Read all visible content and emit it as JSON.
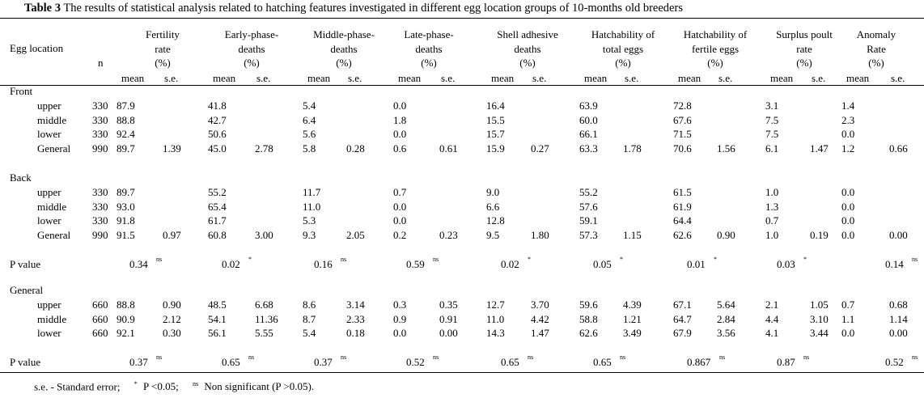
{
  "caption": {
    "label": "Table 3",
    "text": " The results of statistical analysis related to hatching features investigated in different egg location groups of 10-months old breeders"
  },
  "header": {
    "egg_location": "Egg location",
    "n": "n",
    "columns": [
      {
        "line1": "Fertility",
        "line2": "rate",
        "line3": "(%)"
      },
      {
        "line1": "Early-phase-",
        "line2": "deaths",
        "line3": "(%)"
      },
      {
        "line1": "Middle-phase-",
        "line2": "deaths",
        "line3": "(%)"
      },
      {
        "line1": "Late-phase-",
        "line2": "deaths",
        "line3": "(%)"
      },
      {
        "line1": "Shell adhesive",
        "line2": "deaths",
        "line3": "(%)"
      },
      {
        "line1": "Hatchability of",
        "line2": "total eggs",
        "line3": "(%)"
      },
      {
        "line1": "Hatchability of",
        "line2": "fertile eggs",
        "line3": "(%)"
      },
      {
        "line1": "Surplus poult",
        "line2": "rate",
        "line3": "(%)"
      },
      {
        "line1": "Anomaly",
        "line2": "Rate",
        "line3": "(%)"
      }
    ],
    "mean": "mean",
    "se": "s.e."
  },
  "sections": [
    {
      "title": "Front",
      "rows": [
        {
          "label": "upper",
          "n": "330",
          "vals": [
            [
              "87.9",
              ""
            ],
            [
              "41.8",
              ""
            ],
            [
              "5.4",
              ""
            ],
            [
              "0.0",
              ""
            ],
            [
              "16.4",
              ""
            ],
            [
              "63.9",
              ""
            ],
            [
              "72.8",
              ""
            ],
            [
              "3.1",
              ""
            ],
            [
              "1.4",
              ""
            ]
          ]
        },
        {
          "label": "middle",
          "n": "330",
          "vals": [
            [
              "88.8",
              ""
            ],
            [
              "42.7",
              ""
            ],
            [
              "6.4",
              ""
            ],
            [
              "1.8",
              ""
            ],
            [
              "15.5",
              ""
            ],
            [
              "60.0",
              ""
            ],
            [
              "67.6",
              ""
            ],
            [
              "7.5",
              ""
            ],
            [
              "2.3",
              ""
            ]
          ]
        },
        {
          "label": "lower",
          "n": "330",
          "vals": [
            [
              "92.4",
              ""
            ],
            [
              "50.6",
              ""
            ],
            [
              "5.6",
              ""
            ],
            [
              "0.0",
              ""
            ],
            [
              "15.7",
              ""
            ],
            [
              "66.1",
              ""
            ],
            [
              "71.5",
              ""
            ],
            [
              "7.5",
              ""
            ],
            [
              "0.0",
              ""
            ]
          ]
        },
        {
          "label": "General",
          "n": "990",
          "vals": [
            [
              "89.7",
              "1.39"
            ],
            [
              "45.0",
              "2.78"
            ],
            [
              "5.8",
              "0.28"
            ],
            [
              "0.6",
              "0.61"
            ],
            [
              "15.9",
              "0.27"
            ],
            [
              "63.3",
              "1.78"
            ],
            [
              "70.6",
              "1.56"
            ],
            [
              "6.1",
              "1.47"
            ],
            [
              "1.2",
              "0.66"
            ]
          ]
        }
      ]
    },
    {
      "title": "Back",
      "rows": [
        {
          "label": "upper",
          "n": "330",
          "vals": [
            [
              "89.7",
              ""
            ],
            [
              "55.2",
              ""
            ],
            [
              "11.7",
              ""
            ],
            [
              "0.7",
              ""
            ],
            [
              "9.0",
              ""
            ],
            [
              "55.2",
              ""
            ],
            [
              "61.5",
              ""
            ],
            [
              "1.0",
              ""
            ],
            [
              "0.0",
              ""
            ]
          ]
        },
        {
          "label": "middle",
          "n": "330",
          "vals": [
            [
              "93.0",
              ""
            ],
            [
              "65.4",
              ""
            ],
            [
              "11.0",
              ""
            ],
            [
              "0.0",
              ""
            ],
            [
              "6.6",
              ""
            ],
            [
              "57.6",
              ""
            ],
            [
              "61.9",
              ""
            ],
            [
              "1.3",
              ""
            ],
            [
              "0.0",
              ""
            ]
          ]
        },
        {
          "label": "lower",
          "n": "330",
          "vals": [
            [
              "91.8",
              ""
            ],
            [
              "61.7",
              ""
            ],
            [
              "5.3",
              ""
            ],
            [
              "0.0",
              ""
            ],
            [
              "12.8",
              ""
            ],
            [
              "59.1",
              ""
            ],
            [
              "64.4",
              ""
            ],
            [
              "0.7",
              ""
            ],
            [
              "0.0",
              ""
            ]
          ]
        },
        {
          "label": "General",
          "n": "990",
          "vals": [
            [
              "91.5",
              "0.97"
            ],
            [
              "60.8",
              "3.00"
            ],
            [
              "9.3",
              "2.05"
            ],
            [
              "0.2",
              "0.23"
            ],
            [
              "9.5",
              "1.80"
            ],
            [
              "57.3",
              "1.15"
            ],
            [
              "62.6",
              "0.90"
            ],
            [
              "1.0",
              "0.19"
            ],
            [
              "0.0",
              "0.00"
            ]
          ]
        }
      ]
    },
    {
      "title": "General",
      "rows": [
        {
          "label": "upper",
          "n": "660",
          "vals": [
            [
              "88.8",
              "0.90"
            ],
            [
              "48.5",
              "6.68"
            ],
            [
              "8.6",
              "3.14"
            ],
            [
              "0.3",
              "0.35"
            ],
            [
              "12.7",
              "3.70"
            ],
            [
              "59.6",
              "4.39"
            ],
            [
              "67.1",
              "5.64"
            ],
            [
              "2.1",
              "1.05"
            ],
            [
              "0.7",
              "0.68"
            ]
          ]
        },
        {
          "label": "middle",
          "n": "660",
          "vals": [
            [
              "90.9",
              "2.12"
            ],
            [
              "54.1",
              "11.36"
            ],
            [
              "8.7",
              "2.33"
            ],
            [
              "0.9",
              "0.91"
            ],
            [
              "11.0",
              "4.42"
            ],
            [
              "58.8",
              "1.21"
            ],
            [
              "64.7",
              "2.84"
            ],
            [
              "4.4",
              "3.10"
            ],
            [
              "1.1",
              "1.14"
            ]
          ]
        },
        {
          "label": "lower",
          "n": "660",
          "vals": [
            [
              "92.1",
              "0.30"
            ],
            [
              "56.1",
              "5.55"
            ],
            [
              "5.4",
              "0.18"
            ],
            [
              "0.0",
              "0.00"
            ],
            [
              "14.3",
              "1.47"
            ],
            [
              "62.6",
              "3.49"
            ],
            [
              "67.9",
              "3.56"
            ],
            [
              "4.1",
              "3.44"
            ],
            [
              "0.0",
              "0.00"
            ]
          ]
        }
      ]
    }
  ],
  "pvalues": [
    {
      "label": "P value",
      "vals": [
        [
          "0.34",
          "ns"
        ],
        [
          "0.02",
          "*"
        ],
        [
          "0.16",
          "ns"
        ],
        [
          "0.59",
          "ns"
        ],
        [
          "0.02",
          "*"
        ],
        [
          "0.05",
          "*"
        ],
        [
          "0.01",
          "*"
        ],
        [
          "0.03",
          "*"
        ],
        [
          "0.14",
          "ns"
        ]
      ]
    },
    {
      "label": "P value",
      "vals": [
        [
          "0.37",
          "ns"
        ],
        [
          "0.65",
          "ns"
        ],
        [
          "0.37",
          "ns"
        ],
        [
          "0.52",
          "ns"
        ],
        [
          "0.65",
          "ns"
        ],
        [
          "0.65",
          "ns"
        ],
        [
          "0.867",
          "ns"
        ],
        [
          "0.87",
          "ns"
        ],
        [
          "0.52",
          "ns"
        ]
      ]
    }
  ],
  "footer": {
    "se_text": "s.e. - Standard error;",
    "star_mark": "*",
    "star_text": "P <0.05;",
    "ns_mark": "ns",
    "ns_text": "Non significant (P >0.05)."
  }
}
